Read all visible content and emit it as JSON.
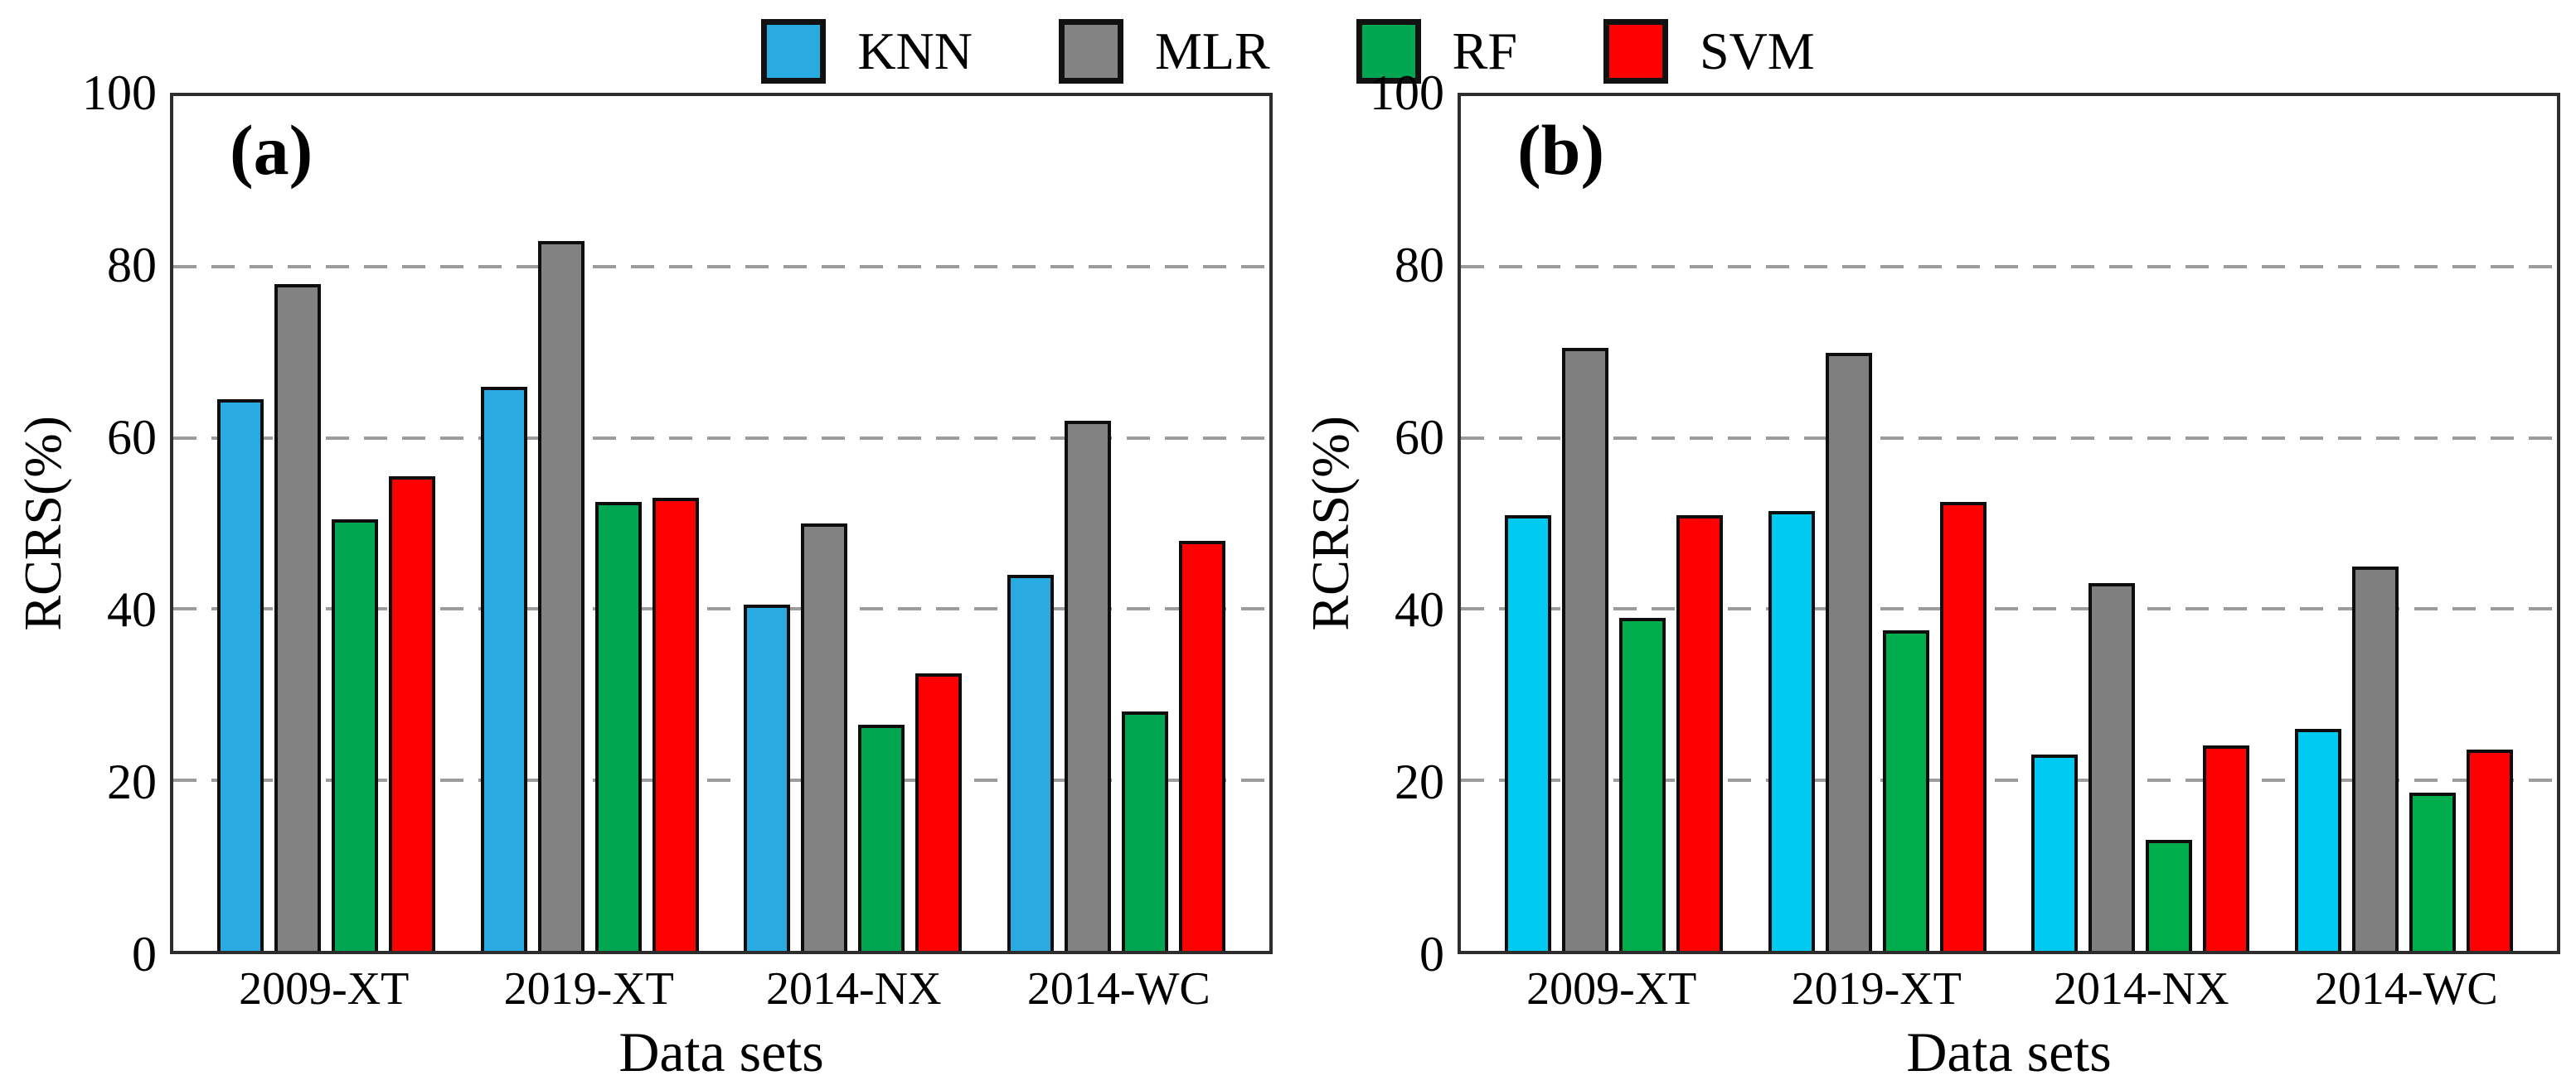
{
  "legend": {
    "items": [
      {
        "label": "KNN",
        "color": "#29ABE2"
      },
      {
        "label": "MLR",
        "color": "#838383"
      },
      {
        "label": "RF",
        "color": "#00A651"
      },
      {
        "label": "SVM",
        "color": "#FE0000"
      }
    ]
  },
  "chart_data": [
    {
      "type": "bar",
      "panel_label": "(a)",
      "categories": [
        "2009-XT",
        "2019-XT",
        "2014-NX",
        "2014-WC"
      ],
      "series": [
        {
          "name": "KNN",
          "color": "#29ABE2",
          "values": [
            64.5,
            66,
            40.5,
            44
          ]
        },
        {
          "name": "MLR",
          "color": "#828282",
          "values": [
            78,
            83,
            50,
            62
          ]
        },
        {
          "name": "RF",
          "color": "#00A651",
          "values": [
            50.5,
            52.5,
            26.5,
            28
          ]
        },
        {
          "name": "SVM",
          "color": "#FE0000",
          "values": [
            55.5,
            53,
            32.5,
            48
          ]
        }
      ],
      "xlabel": "Data sets",
      "ylabel": "RCRS(%)",
      "ylim": [
        0,
        100
      ],
      "yticks": [
        0,
        20,
        40,
        60,
        80,
        100
      ],
      "grid": "horizontal-dashed",
      "legend_position": "top-center-shared"
    },
    {
      "type": "bar",
      "panel_label": "(b)",
      "categories": [
        "2009-XT",
        "2019-XT",
        "2014-NX",
        "2014-WC"
      ],
      "series": [
        {
          "name": "KNN",
          "color": "#00C9F2",
          "values": [
            51,
            51.5,
            23,
            26
          ]
        },
        {
          "name": "MLR",
          "color": "#7F7F7F",
          "values": [
            70.5,
            70,
            43,
            45
          ]
        },
        {
          "name": "RF",
          "color": "#00AD4D",
          "values": [
            39,
            37.5,
            13,
            18.5
          ]
        },
        {
          "name": "SVM",
          "color": "#FE0000",
          "values": [
            51,
            52.5,
            24,
            23.5
          ]
        }
      ],
      "xlabel": "Data sets",
      "ylabel": "RCRS(%)",
      "ylim": [
        0,
        100
      ],
      "yticks": [
        0,
        20,
        40,
        60,
        80,
        100
      ],
      "grid": "horizontal-dashed",
      "legend_position": "top-center-shared"
    }
  ]
}
